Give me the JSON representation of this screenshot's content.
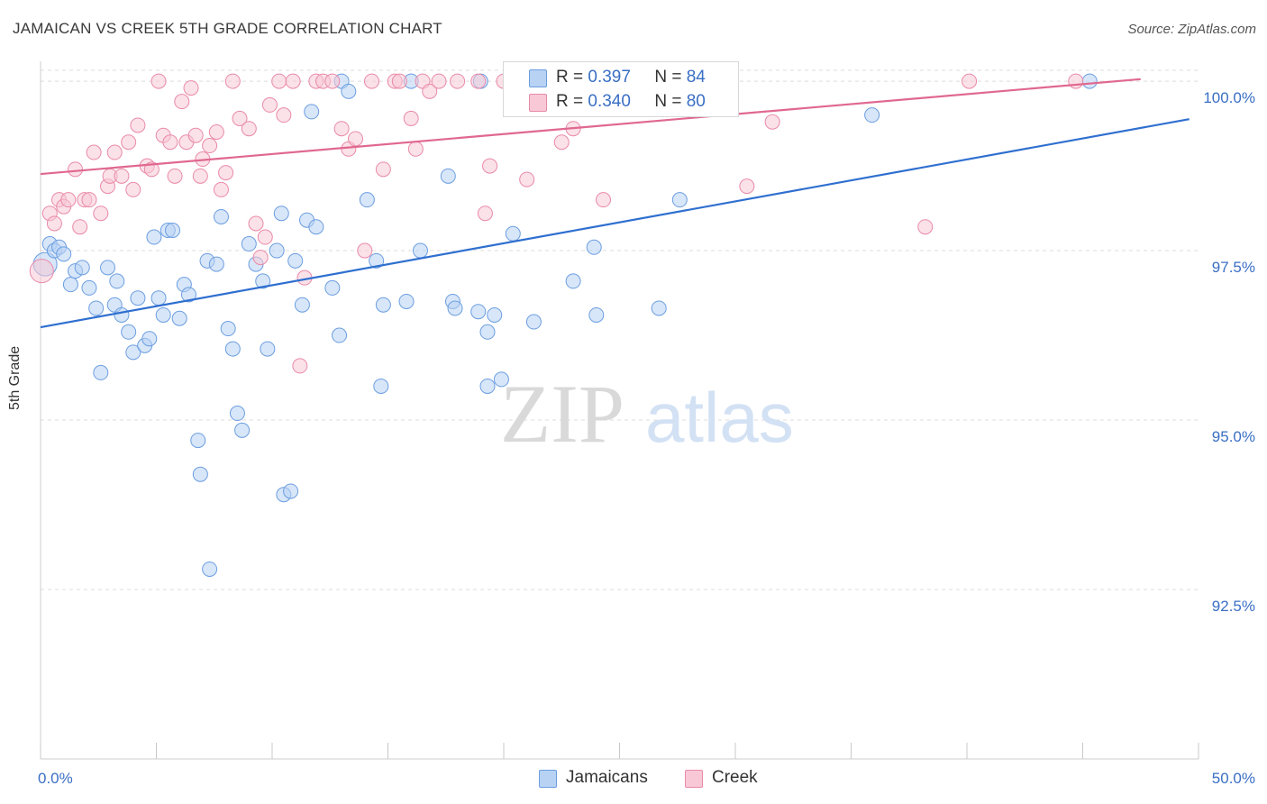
{
  "title": "JAMAICAN VS CREEK 5TH GRADE CORRELATION CHART",
  "source": "Source: ZipAtlas.com",
  "watermark": {
    "zip": "ZIP",
    "atlas": "atlas"
  },
  "legend": {
    "r_label": "R =",
    "n_label": "N =",
    "jamaicans": {
      "r": "0.397",
      "n": "84"
    },
    "creek": {
      "r": "0.340",
      "n": "80"
    }
  },
  "bottom_legend": {
    "jamaicans": "Jamaicans",
    "creek": "Creek"
  },
  "colors": {
    "blue_fill": "#b8d2f4",
    "blue_stroke": "#6b9ee0",
    "blue_line": "#2f6fd0",
    "pink_fill": "#f8c8d6",
    "pink_stroke": "#e98aa9",
    "pink_line": "#e06890",
    "axis_text": "#3a6fc4"
  },
  "chart_data": {
    "type": "scatter",
    "ylabel": "5th Grade",
    "xlim": [
      0,
      50
    ],
    "ylim": [
      90.0,
      100.4
    ],
    "x_tick_labels": [
      "0.0%",
      "50.0%"
    ],
    "y_ticks": [
      {
        "value": 100.0,
        "label": "100.0%"
      },
      {
        "value": 97.5,
        "label": "97.5%"
      },
      {
        "value": 95.0,
        "label": "95.0%"
      },
      {
        "value": 92.5,
        "label": "92.5%"
      }
    ],
    "series": [
      {
        "name": "Jamaicans",
        "r": 0.397,
        "n": 84,
        "trend": {
          "x": [
            0,
            49.6
          ],
          "y": [
            96.37,
            99.44
          ]
        },
        "points": [
          [
            0.2,
            97.3
          ],
          [
            0.4,
            97.6
          ],
          [
            0.6,
            97.5
          ],
          [
            0.8,
            97.55
          ],
          [
            1.0,
            97.45
          ],
          [
            1.3,
            97.0
          ],
          [
            1.5,
            97.2
          ],
          [
            1.8,
            97.25
          ],
          [
            2.1,
            96.95
          ],
          [
            2.4,
            96.65
          ],
          [
            2.6,
            95.7
          ],
          [
            2.9,
            97.25
          ],
          [
            3.2,
            96.7
          ],
          [
            3.3,
            97.05
          ],
          [
            3.5,
            96.55
          ],
          [
            3.8,
            96.3
          ],
          [
            4.0,
            96.0
          ],
          [
            4.2,
            96.8
          ],
          [
            4.5,
            96.1
          ],
          [
            4.7,
            96.2
          ],
          [
            4.9,
            97.7
          ],
          [
            5.1,
            96.8
          ],
          [
            5.3,
            96.55
          ],
          [
            5.5,
            97.8
          ],
          [
            5.7,
            97.8
          ],
          [
            6.0,
            96.5
          ],
          [
            6.2,
            97.0
          ],
          [
            6.4,
            96.85
          ],
          [
            6.8,
            94.7
          ],
          [
            6.9,
            94.2
          ],
          [
            7.2,
            97.35
          ],
          [
            7.3,
            92.8
          ],
          [
            7.6,
            97.3
          ],
          [
            7.8,
            98.0
          ],
          [
            8.1,
            96.35
          ],
          [
            8.3,
            96.05
          ],
          [
            8.5,
            95.1
          ],
          [
            8.7,
            94.85
          ],
          [
            9.0,
            97.6
          ],
          [
            9.3,
            97.3
          ],
          [
            9.6,
            97.05
          ],
          [
            9.8,
            96.05
          ],
          [
            10.2,
            97.5
          ],
          [
            10.4,
            98.05
          ],
          [
            10.5,
            93.9
          ],
          [
            10.8,
            93.95
          ],
          [
            11.0,
            97.35
          ],
          [
            11.3,
            96.7
          ],
          [
            11.5,
            97.95
          ],
          [
            11.7,
            99.55
          ],
          [
            11.9,
            97.85
          ],
          [
            12.6,
            96.95
          ],
          [
            12.9,
            96.25
          ],
          [
            13.0,
            100.0
          ],
          [
            13.3,
            99.85
          ],
          [
            14.1,
            98.25
          ],
          [
            14.5,
            97.35
          ],
          [
            14.7,
            95.5
          ],
          [
            14.8,
            96.7
          ],
          [
            15.8,
            96.75
          ],
          [
            16.0,
            100.0
          ],
          [
            16.4,
            97.5
          ],
          [
            17.6,
            98.6
          ],
          [
            17.8,
            96.75
          ],
          [
            17.9,
            96.65
          ],
          [
            18.9,
            96.6
          ],
          [
            19.0,
            100.0
          ],
          [
            19.3,
            95.5
          ],
          [
            19.3,
            96.3
          ],
          [
            19.6,
            96.55
          ],
          [
            19.9,
            95.6
          ],
          [
            20.4,
            97.75
          ],
          [
            21.3,
            96.45
          ],
          [
            21.5,
            100.0
          ],
          [
            23.0,
            97.05
          ],
          [
            23.9,
            97.55
          ],
          [
            24.0,
            96.55
          ],
          [
            26.4,
            99.7
          ],
          [
            26.5,
            100.0
          ],
          [
            26.7,
            96.65
          ],
          [
            26.9,
            100.0
          ],
          [
            27.6,
            98.25
          ],
          [
            35.9,
            99.5
          ],
          [
            45.3,
            100.0
          ]
        ]
      },
      {
        "name": "Creek",
        "r": 0.34,
        "n": 80,
        "trend": {
          "x": [
            0,
            47.5
          ],
          "y": [
            98.63,
            100.03
          ]
        },
        "points": [
          [
            0.05,
            97.2
          ],
          [
            0.4,
            98.05
          ],
          [
            0.6,
            97.9
          ],
          [
            0.8,
            98.25
          ],
          [
            1.0,
            98.15
          ],
          [
            1.2,
            98.25
          ],
          [
            1.5,
            98.7
          ],
          [
            1.7,
            97.85
          ],
          [
            1.9,
            98.25
          ],
          [
            2.1,
            98.25
          ],
          [
            2.3,
            98.95
          ],
          [
            2.6,
            98.05
          ],
          [
            2.9,
            98.45
          ],
          [
            3.0,
            98.6
          ],
          [
            3.2,
            98.95
          ],
          [
            3.5,
            98.6
          ],
          [
            3.8,
            99.1
          ],
          [
            4.0,
            98.4
          ],
          [
            4.2,
            99.35
          ],
          [
            4.6,
            98.75
          ],
          [
            4.8,
            98.7
          ],
          [
            5.1,
            100.0
          ],
          [
            5.3,
            99.2
          ],
          [
            5.6,
            99.1
          ],
          [
            5.8,
            98.6
          ],
          [
            6.1,
            99.7
          ],
          [
            6.3,
            99.1
          ],
          [
            6.5,
            99.9
          ],
          [
            6.7,
            99.2
          ],
          [
            6.9,
            98.6
          ],
          [
            7.0,
            98.85
          ],
          [
            7.3,
            99.05
          ],
          [
            7.6,
            99.25
          ],
          [
            7.8,
            98.4
          ],
          [
            8.0,
            98.65
          ],
          [
            8.3,
            100.0
          ],
          [
            8.6,
            99.45
          ],
          [
            9.0,
            99.3
          ],
          [
            9.3,
            97.9
          ],
          [
            9.5,
            97.4
          ],
          [
            9.7,
            97.7
          ],
          [
            9.9,
            99.65
          ],
          [
            10.3,
            100.0
          ],
          [
            10.5,
            99.5
          ],
          [
            10.9,
            100.0
          ],
          [
            11.2,
            95.8
          ],
          [
            11.4,
            97.1
          ],
          [
            11.9,
            100.0
          ],
          [
            12.2,
            100.0
          ],
          [
            12.6,
            100.0
          ],
          [
            13.0,
            99.3
          ],
          [
            13.3,
            99.0
          ],
          [
            13.6,
            99.15
          ],
          [
            14.0,
            97.5
          ],
          [
            14.3,
            100.0
          ],
          [
            14.8,
            98.7
          ],
          [
            15.3,
            100.0
          ],
          [
            15.5,
            100.0
          ],
          [
            16.0,
            99.45
          ],
          [
            16.2,
            99.0
          ],
          [
            16.5,
            100.0
          ],
          [
            16.8,
            99.85
          ],
          [
            17.2,
            100.0
          ],
          [
            18.0,
            100.0
          ],
          [
            18.9,
            100.0
          ],
          [
            19.2,
            98.05
          ],
          [
            19.4,
            98.75
          ],
          [
            20.0,
            100.0
          ],
          [
            21.0,
            98.55
          ],
          [
            21.5,
            100.0
          ],
          [
            22.5,
            99.1
          ],
          [
            23.0,
            99.3
          ],
          [
            24.3,
            98.25
          ],
          [
            25.0,
            99.7
          ],
          [
            25.5,
            100.0
          ],
          [
            30.5,
            98.45
          ],
          [
            31.6,
            99.4
          ],
          [
            38.2,
            97.85
          ],
          [
            40.1,
            100.0
          ],
          [
            44.7,
            100.0
          ]
        ]
      }
    ]
  }
}
